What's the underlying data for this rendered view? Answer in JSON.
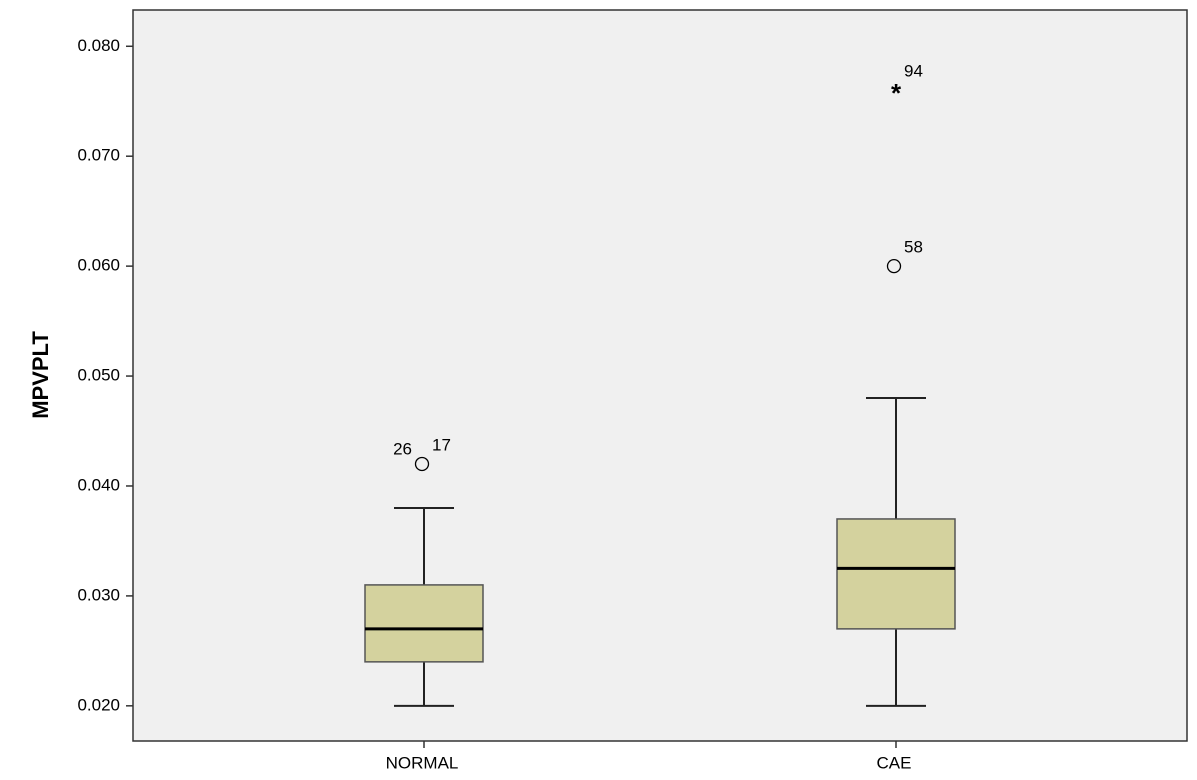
{
  "chart_data": {
    "type": "box",
    "y_label": "MPVPLT",
    "categories": [
      "NORMAL",
      "CAE"
    ],
    "color": "#d4d29e",
    "boxes": [
      {
        "whislo": 0.02,
        "q1": 0.024,
        "med": 0.027,
        "q3": 0.031,
        "whishi": 0.038,
        "outliers": [
          {
            "value": 0.042,
            "marker": "circle",
            "labels": [
              "26",
              "17"
            ]
          }
        ]
      },
      {
        "whislo": 0.02,
        "q1": 0.027,
        "med": 0.0325,
        "q3": 0.037,
        "whishi": 0.048,
        "outliers": [
          {
            "value": 0.06,
            "marker": "circle",
            "labels": [
              "58"
            ]
          },
          {
            "value": 0.076,
            "marker": "star",
            "labels": [
              "94"
            ]
          }
        ]
      }
    ],
    "ylim": [
      0.0168,
      0.0833
    ],
    "yticks": [
      {
        "value": 0.02,
        "label": "0.020"
      },
      {
        "value": 0.03,
        "label": "0.030"
      },
      {
        "value": 0.04,
        "label": "0.040"
      },
      {
        "value": 0.05,
        "label": "0.050"
      },
      {
        "value": 0.06,
        "label": "0.060"
      },
      {
        "value": 0.07,
        "label": "0.070"
      },
      {
        "value": 0.08,
        "label": "0.080"
      }
    ]
  }
}
